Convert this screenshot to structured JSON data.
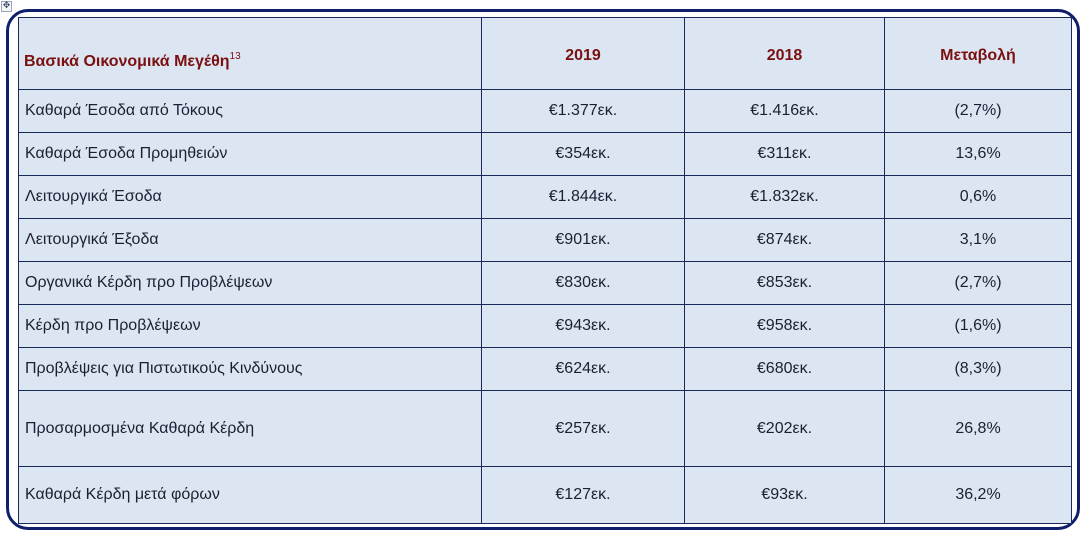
{
  "table": {
    "header": {
      "label": "Βασικά Οικονομικά  Μεγέθη",
      "label_sup": "13",
      "col_2019": "2019",
      "col_2018": "2018",
      "col_change": "Μεταβολή"
    },
    "rows": [
      {
        "label": "Καθαρά Έσοδα από Τόκους",
        "v2019": "€1.377εκ.",
        "v2018": "€1.416εκ.",
        "change": "(2,7%)"
      },
      {
        "label": "Καθαρά Έσοδα Προμηθειών",
        "v2019": "€354εκ.",
        "v2018": "€311εκ.",
        "change": "13,6%"
      },
      {
        "label": "Λειτουργικά Έσοδα",
        "v2019": "€1.844εκ.",
        "v2018": "€1.832εκ.",
        "change": "0,6%"
      },
      {
        "label": "Λειτουργικά Έξοδα",
        "v2019": "€901εκ.",
        "v2018": "€874εκ.",
        "change": "3,1%"
      },
      {
        "label": "Οργανικά Κέρδη προ Προβλέψεων",
        "v2019": "€830εκ.",
        "v2018": "€853εκ.",
        "change": "(2,7%)"
      },
      {
        "label": "Κέρδη προ Προβλέψεων",
        "v2019": "€943εκ.",
        "v2018": "€958εκ.",
        "change": "(1,6%)"
      },
      {
        "label": "Προβλέψεις για Πιστωτικούς Κινδύνους",
        "v2019": "€624εκ.",
        "v2018": "€680εκ.",
        "change": "(8,3%)"
      },
      {
        "label": "Προσαρμοσμένα Καθαρά Κέρδη",
        "v2019": "€257εκ.",
        "v2018": "€202εκ.",
        "change": "26,8%"
      },
      {
        "label": "Καθαρά Κέρδη μετά φόρων",
        "v2019": "€127εκ.",
        "v2018": "€93εκ.",
        "change": "36,2%"
      }
    ]
  }
}
